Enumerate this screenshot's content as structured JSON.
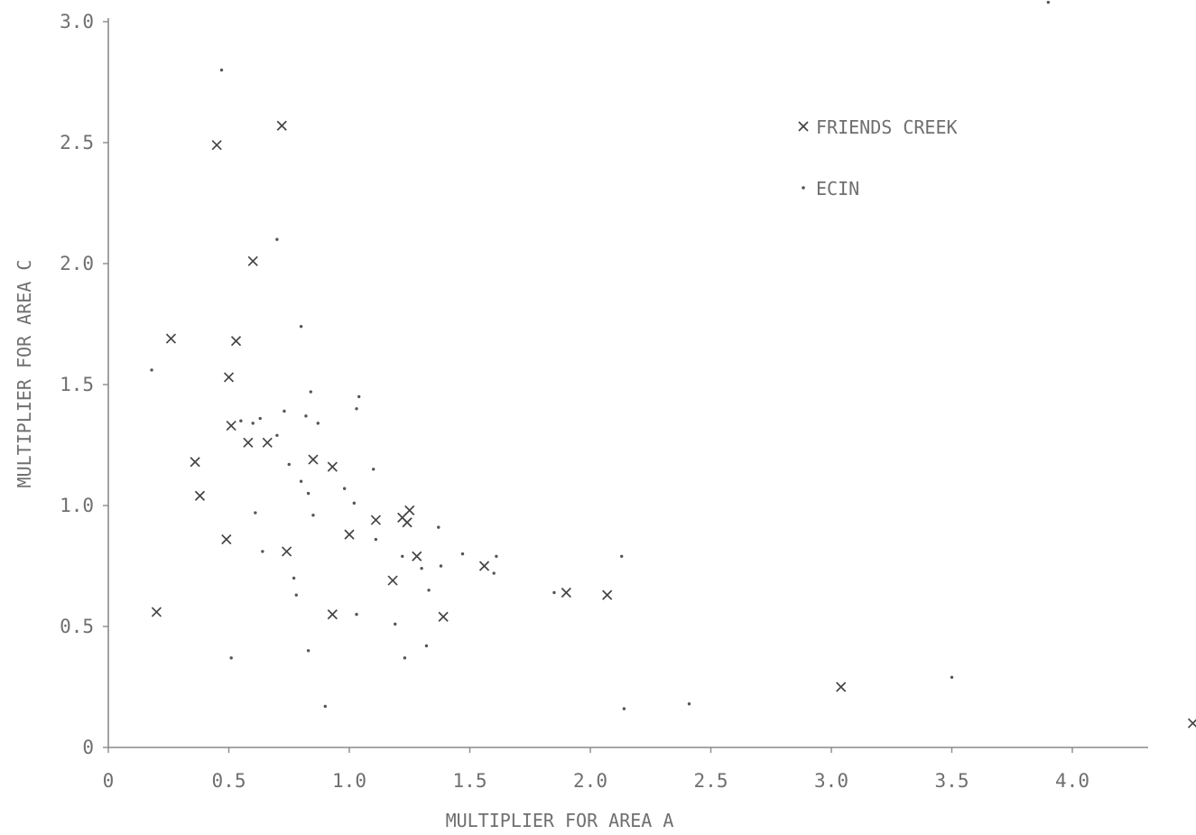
{
  "chart_data": {
    "type": "scatter",
    "title": "",
    "xlabel": "MULTIPLIER FOR AREA A",
    "ylabel": "MULTIPLIER FOR AREA C",
    "xlim": [
      0,
      4.3
    ],
    "ylim": [
      0,
      3.0
    ],
    "x_ticks": [
      0,
      0.5,
      1.0,
      1.5,
      2.0,
      2.5,
      3.0,
      3.5,
      4.0
    ],
    "x_tick_labels": [
      "0",
      "0.5",
      "1.0",
      "1.5",
      "2.0",
      "2.5",
      "3.0",
      "3.5",
      "4.0"
    ],
    "y_ticks": [
      0,
      0.5,
      1.0,
      1.5,
      2.0,
      2.5,
      3.0
    ],
    "y_tick_labels": [
      "0",
      "0.5",
      "1.0",
      "1.5",
      "2.0",
      "2.5",
      "3.0"
    ],
    "grid": false,
    "legend_position": "top-right",
    "series": [
      {
        "name": "FRIENDS CREEK",
        "marker": "x",
        "color": "#444444",
        "points": [
          [
            0.2,
            0.56
          ],
          [
            0.26,
            1.69
          ],
          [
            0.36,
            1.18
          ],
          [
            0.38,
            1.04
          ],
          [
            0.45,
            2.49
          ],
          [
            0.49,
            0.86
          ],
          [
            0.5,
            1.53
          ],
          [
            0.51,
            1.33
          ],
          [
            0.53,
            1.68
          ],
          [
            0.58,
            1.26
          ],
          [
            0.6,
            2.01
          ],
          [
            0.66,
            1.26
          ],
          [
            0.72,
            2.57
          ],
          [
            0.74,
            0.81
          ],
          [
            0.85,
            1.19
          ],
          [
            0.93,
            0.55
          ],
          [
            0.93,
            1.16
          ],
          [
            1.0,
            0.88
          ],
          [
            1.11,
            0.94
          ],
          [
            1.18,
            0.69
          ],
          [
            1.22,
            0.95
          ],
          [
            1.24,
            0.93
          ],
          [
            1.25,
            0.98
          ],
          [
            1.28,
            0.79
          ],
          [
            1.39,
            0.54
          ],
          [
            1.56,
            0.75
          ],
          [
            1.9,
            0.64
          ],
          [
            2.07,
            0.63
          ],
          [
            3.04,
            0.25
          ],
          [
            4.5,
            0.1
          ]
        ]
      },
      {
        "name": "ECIN",
        "marker": "dot",
        "color": "#555555",
        "points": [
          [
            0.18,
            1.56
          ],
          [
            0.47,
            2.8
          ],
          [
            0.51,
            0.37
          ],
          [
            0.55,
            1.35
          ],
          [
            0.6,
            1.34
          ],
          [
            0.61,
            0.97
          ],
          [
            0.63,
            1.36
          ],
          [
            0.64,
            0.81
          ],
          [
            0.7,
            2.1
          ],
          [
            0.7,
            1.29
          ],
          [
            0.73,
            1.39
          ],
          [
            0.75,
            1.17
          ],
          [
            0.77,
            0.7
          ],
          [
            0.78,
            0.63
          ],
          [
            0.8,
            1.74
          ],
          [
            0.8,
            1.1
          ],
          [
            0.82,
            1.37
          ],
          [
            0.83,
            1.05
          ],
          [
            0.83,
            0.4
          ],
          [
            0.84,
            1.47
          ],
          [
            0.85,
            0.96
          ],
          [
            0.87,
            1.34
          ],
          [
            0.9,
            0.17
          ],
          [
            0.98,
            1.07
          ],
          [
            1.02,
            1.01
          ],
          [
            1.03,
            1.4
          ],
          [
            1.04,
            1.45
          ],
          [
            1.03,
            0.55
          ],
          [
            1.1,
            1.15
          ],
          [
            1.11,
            0.86
          ],
          [
            1.19,
            0.51
          ],
          [
            1.22,
            0.79
          ],
          [
            1.23,
            0.37
          ],
          [
            1.3,
            0.74
          ],
          [
            1.32,
            0.42
          ],
          [
            1.33,
            0.65
          ],
          [
            1.37,
            0.91
          ],
          [
            1.38,
            0.75
          ],
          [
            1.47,
            0.8
          ],
          [
            1.6,
            0.72
          ],
          [
            1.61,
            0.79
          ],
          [
            1.85,
            0.64
          ],
          [
            2.13,
            0.79
          ],
          [
            2.14,
            0.16
          ],
          [
            2.41,
            0.18
          ],
          [
            3.5,
            0.29
          ],
          [
            3.9,
            3.08
          ]
        ]
      }
    ]
  }
}
